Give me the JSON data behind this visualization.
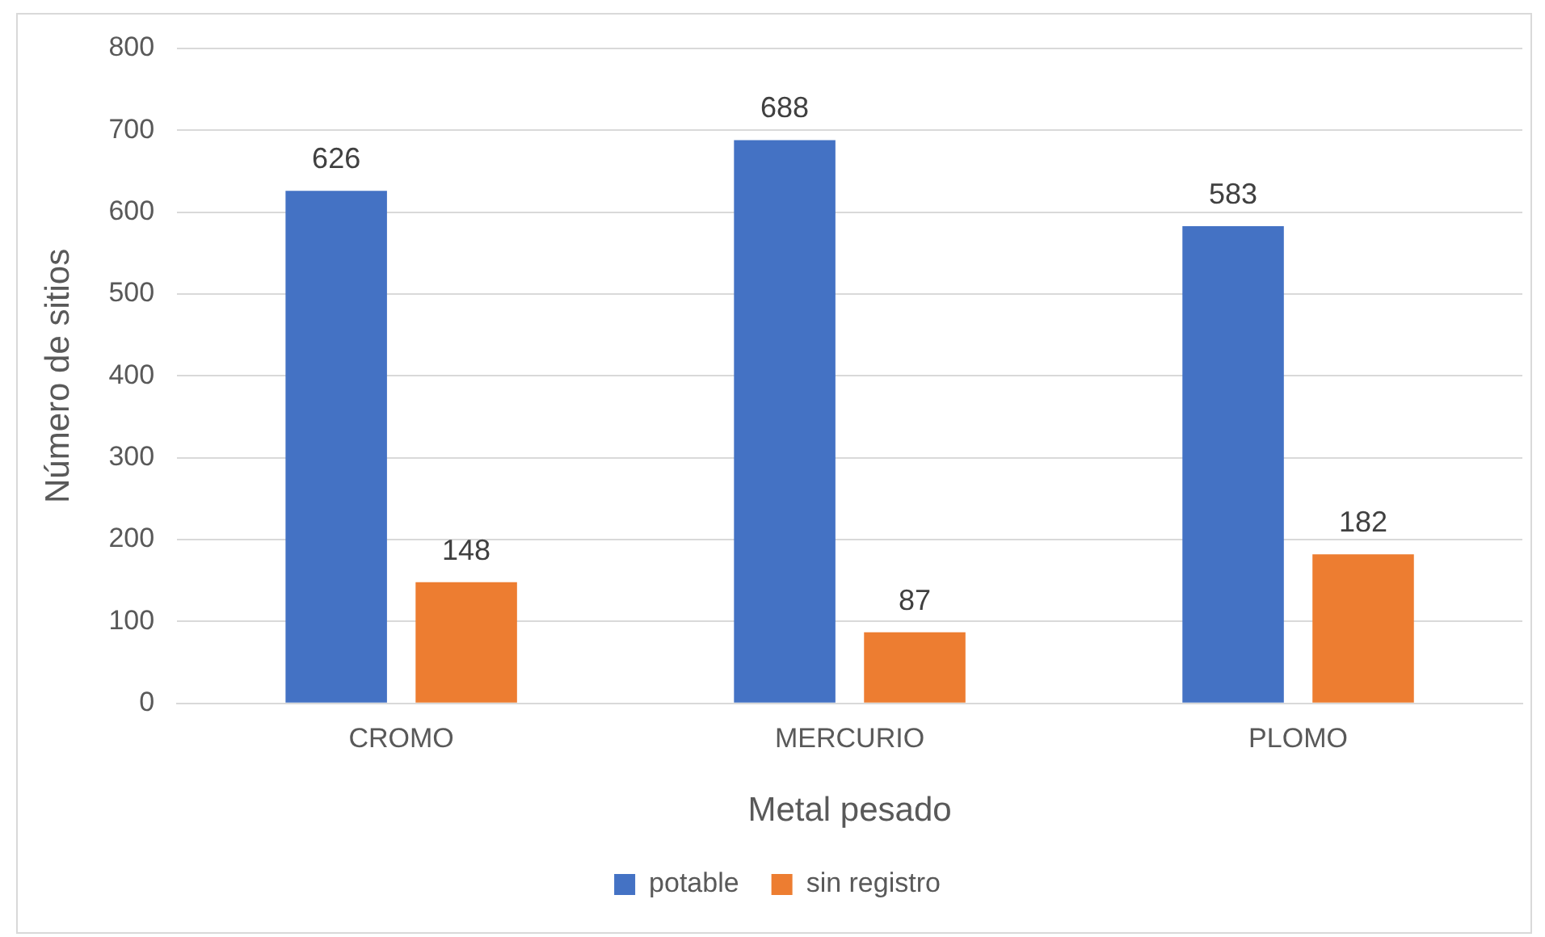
{
  "chart_data": {
    "type": "bar",
    "xlabel": "Metal pesado",
    "ylabel": "Número de sitios",
    "categories": [
      "CROMO",
      "MERCURIO",
      "PLOMO"
    ],
    "series": [
      {
        "name": "potable",
        "color": "#4472c4",
        "values": [
          626,
          688,
          583
        ]
      },
      {
        "name": "sin registro",
        "color": "#ed7d31",
        "values": [
          148,
          87,
          182
        ]
      }
    ],
    "ylim": [
      0,
      800
    ],
    "yticks": [
      0,
      100,
      200,
      300,
      400,
      500,
      600,
      700,
      800
    ],
    "grid": "y",
    "legend": "bottom",
    "data_labels": true
  }
}
